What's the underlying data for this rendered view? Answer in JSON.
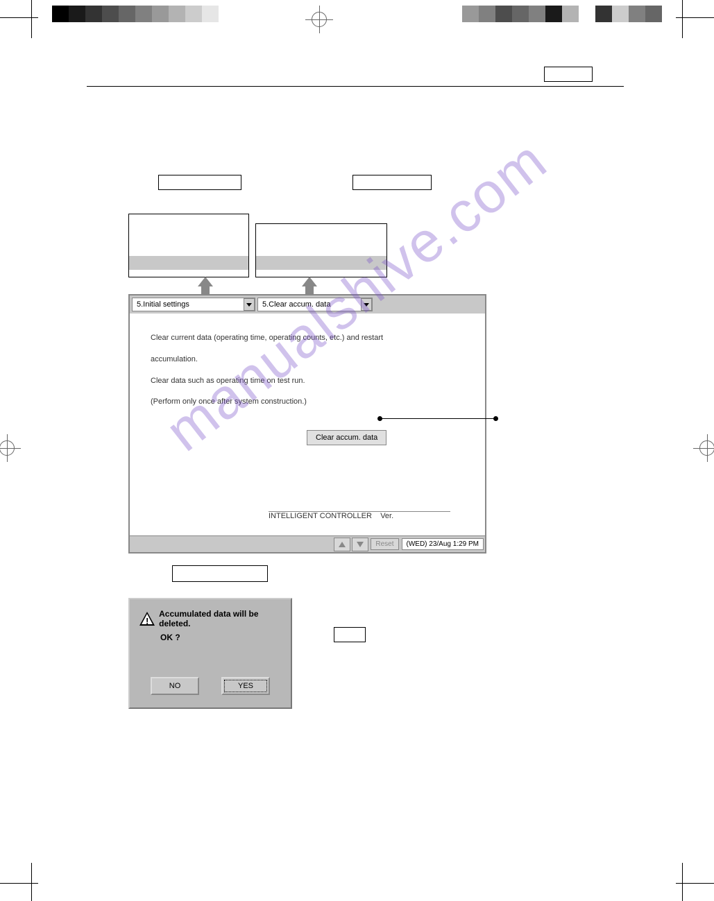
{
  "colorbar_left": [
    "#000000",
    "#1a1a1a",
    "#333333",
    "#4d4d4d",
    "#666666",
    "#808080",
    "#999999",
    "#b3b3b3",
    "#cccccc",
    "#e6e6e6",
    "#ffffff"
  ],
  "colorbar_right": [
    "#999999",
    "#808080",
    "#4d4d4d",
    "#666666",
    "#808080",
    "#1a1a1a",
    "#b3b3b3",
    "#ffffff",
    "#333333",
    "#cccccc",
    "#808080",
    "#666666"
  ],
  "dropdowns": {
    "main_menu": "5.Initial settings",
    "sub_menu": "5.Clear accum. data"
  },
  "content": {
    "line1": "Clear current data (operating time, operating counts, etc.) and restart",
    "line2": "accumulation.",
    "line3": "Clear data such as operating time on test run.",
    "line4": "(Perform only once after system construction.)",
    "button": "Clear accum. data",
    "controller": "INTELLIGENT CONTROLLER",
    "ver": "Ver."
  },
  "status": {
    "reset": "Reset",
    "timestamp": "(WED) 23/Aug 1:29 PM"
  },
  "dialog": {
    "message": "Accumulated data will be deleted.",
    "ok": "OK ?",
    "no": "NO",
    "yes": "YES"
  },
  "watermark": "manualshive.com"
}
